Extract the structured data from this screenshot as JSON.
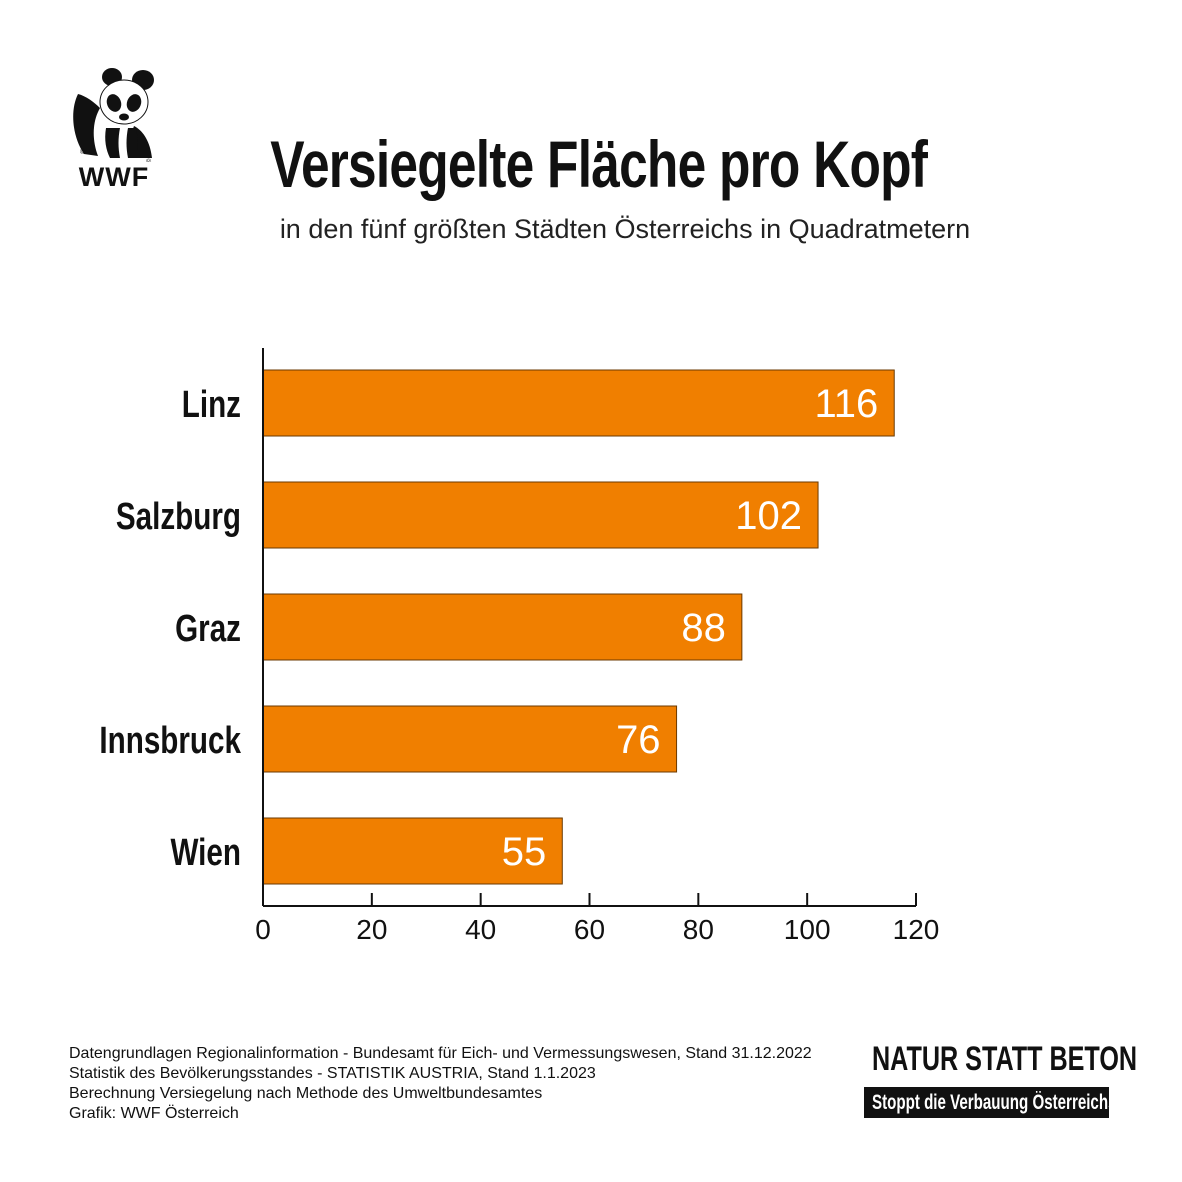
{
  "logo": {
    "text": "WWF",
    "icon": "panda-icon"
  },
  "header": {
    "title": "Versiegelte Fläche pro Kopf",
    "subtitle": "in den fünf größten Städten Österreichs in Quadratmetern"
  },
  "chart_data": {
    "type": "bar",
    "orientation": "horizontal",
    "categories": [
      "Linz",
      "Salzburg",
      "Graz",
      "Innsbruck",
      "Wien"
    ],
    "values": [
      116,
      102,
      88,
      76,
      55
    ],
    "xlim": [
      0,
      120
    ],
    "xticks": [
      0,
      20,
      40,
      60,
      80,
      100,
      120
    ],
    "bar_color": "#F07F00",
    "label_color": "#FFFFFF",
    "grid": false,
    "legend": "none"
  },
  "footer": {
    "lines": [
      "Datengrundlagen Regionalinformation - Bundesamt für Eich- und Vermessungswesen, Stand 31.12.2022",
      "Statistik des Bevölkerungsstandes - STATISTIK AUSTRIA, Stand 1.1.2023",
      "Berechnung Versiegelung nach Methode des Umweltbundesamtes",
      "Grafik: WWF Österreich"
    ]
  },
  "brand": {
    "main": "NATUR STATT BETON",
    "sub": "Stoppt die Verbauung Österreichs!"
  }
}
